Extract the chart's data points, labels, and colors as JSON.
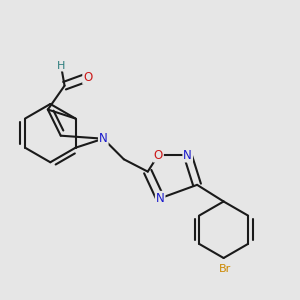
{
  "bg_color": "#e6e6e6",
  "bond_color": "#1a1a1a",
  "bond_lw": 1.5,
  "atom_colors": {
    "N": "#1a1acc",
    "O": "#cc1a1a",
    "Br": "#cc8800",
    "H": "#2d7d7d",
    "C": "#1a1a1a"
  },
  "bl": 0.095
}
